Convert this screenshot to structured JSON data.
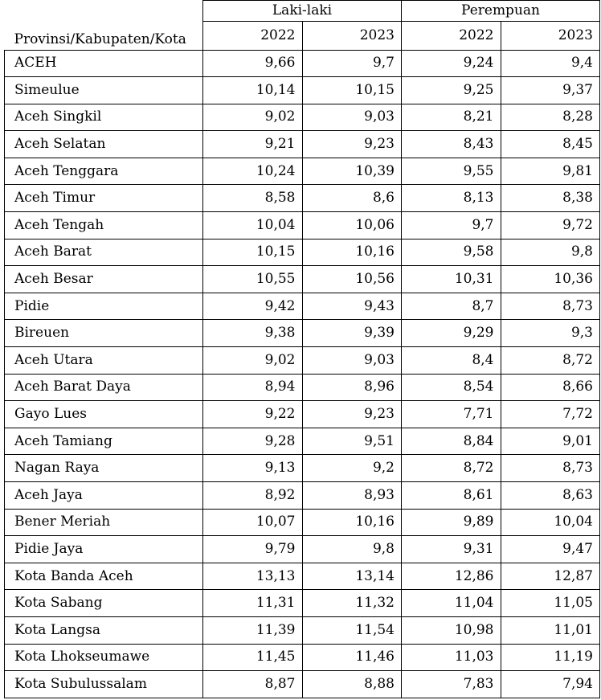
{
  "table": {
    "header": {
      "region_label": "Provinsi/Kabupaten/Kota",
      "groups": [
        "Laki-laki",
        "Perempuan"
      ],
      "years": [
        "2022",
        "2023",
        "2022",
        "2023"
      ]
    },
    "rows": [
      {
        "name": "ACEH",
        "values": [
          "9,66",
          "9,7",
          "9,24",
          "9,4"
        ]
      },
      {
        "name": "Simeulue",
        "values": [
          "10,14",
          "10,15",
          "9,25",
          "9,37"
        ]
      },
      {
        "name": "Aceh Singkil",
        "values": [
          "9,02",
          "9,03",
          "8,21",
          "8,28"
        ]
      },
      {
        "name": "Aceh Selatan",
        "values": [
          "9,21",
          "9,23",
          "8,43",
          "8,45"
        ]
      },
      {
        "name": "Aceh Tenggara",
        "values": [
          "10,24",
          "10,39",
          "9,55",
          "9,81"
        ]
      },
      {
        "name": "Aceh Timur",
        "values": [
          "8,58",
          "8,6",
          "8,13",
          "8,38"
        ]
      },
      {
        "name": "Aceh Tengah",
        "values": [
          "10,04",
          "10,06",
          "9,7",
          "9,72"
        ]
      },
      {
        "name": "Aceh Barat",
        "values": [
          "10,15",
          "10,16",
          "9,58",
          "9,8"
        ]
      },
      {
        "name": "Aceh Besar",
        "values": [
          "10,55",
          "10,56",
          "10,31",
          "10,36"
        ]
      },
      {
        "name": "Pidie",
        "values": [
          "9,42",
          "9,43",
          "8,7",
          "8,73"
        ]
      },
      {
        "name": "Bireuen",
        "values": [
          "9,38",
          "9,39",
          "9,29",
          "9,3"
        ]
      },
      {
        "name": "Aceh Utara",
        "values": [
          "9,02",
          "9,03",
          "8,4",
          "8,72"
        ]
      },
      {
        "name": "Aceh Barat Daya",
        "values": [
          "8,94",
          "8,96",
          "8,54",
          "8,66"
        ]
      },
      {
        "name": "Gayo Lues",
        "values": [
          "9,22",
          "9,23",
          "7,71",
          "7,72"
        ]
      },
      {
        "name": "Aceh Tamiang",
        "values": [
          "9,28",
          "9,51",
          "8,84",
          "9,01"
        ]
      },
      {
        "name": "Nagan Raya",
        "values": [
          "9,13",
          "9,2",
          "8,72",
          "8,73"
        ]
      },
      {
        "name": "Aceh Jaya",
        "values": [
          "8,92",
          "8,93",
          "8,61",
          "8,63"
        ]
      },
      {
        "name": "Bener Meriah",
        "values": [
          "10,07",
          "10,16",
          "9,89",
          "10,04"
        ]
      },
      {
        "name": "Pidie Jaya",
        "values": [
          "9,79",
          "9,8",
          "9,31",
          "9,47"
        ]
      },
      {
        "name": "Kota Banda Aceh",
        "values": [
          "13,13",
          "13,14",
          "12,86",
          "12,87"
        ]
      },
      {
        "name": "Kota Sabang",
        "values": [
          "11,31",
          "11,32",
          "11,04",
          "11,05"
        ]
      },
      {
        "name": "Kota Langsa",
        "values": [
          "11,39",
          "11,54",
          "10,98",
          "11,01"
        ]
      },
      {
        "name": "Kota Lhokseumawe",
        "values": [
          "11,45",
          "11,46",
          "11,03",
          "11,19"
        ]
      },
      {
        "name": "Kota Subulussalam",
        "values": [
          "8,87",
          "8,88",
          "7,83",
          "7,94"
        ]
      }
    ]
  }
}
